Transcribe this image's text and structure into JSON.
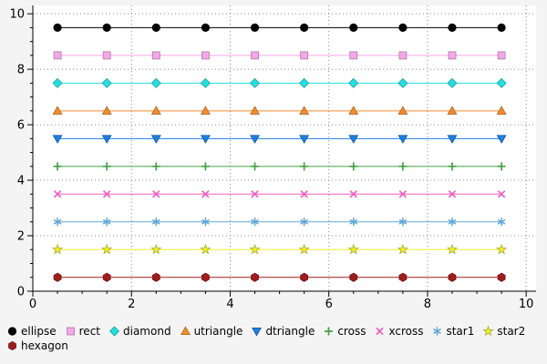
{
  "figure": {
    "background": "#f4f4f4",
    "plot_background": "#ffffff",
    "grid_color": "#8a8a8a",
    "axis_color": "#000000"
  },
  "chart_data": {
    "type": "line",
    "title": "",
    "xlabel": "",
    "ylabel": "",
    "x": [
      0.5,
      1.5,
      2.5,
      3.5,
      4.5,
      5.5,
      6.5,
      7.5,
      8.5,
      9.5
    ],
    "xlim": [
      0,
      10
    ],
    "ylim": [
      0,
      10
    ],
    "xticks": [
      "0",
      "2",
      "4",
      "6",
      "8",
      "10"
    ],
    "yticks": [
      "0",
      "2",
      "4",
      "6",
      "8",
      "10"
    ],
    "xtick_values": [
      0,
      2,
      4,
      6,
      8,
      10
    ],
    "ytick_values": [
      0,
      2,
      4,
      6,
      8,
      10
    ],
    "grid": true,
    "grid_style": "dotted",
    "legend_position": "bottom",
    "series": [
      {
        "name": "ellipse",
        "marker": "circle",
        "color": "#000000",
        "y": 9.5
      },
      {
        "name": "rect",
        "marker": "square",
        "color": "#f3a8e8",
        "y": 8.5
      },
      {
        "name": "diamond",
        "marker": "diamond",
        "color": "#25dede",
        "y": 7.5
      },
      {
        "name": "utriangle",
        "marker": "triangle-up",
        "color": "#f08c2d",
        "y": 6.5
      },
      {
        "name": "dtriangle",
        "marker": "triangle-down",
        "color": "#1f7fe0",
        "y": 5.5
      },
      {
        "name": "cross",
        "marker": "plus",
        "color": "#44a044",
        "y": 4.5
      },
      {
        "name": "xcross",
        "marker": "x",
        "color": "#f060c0",
        "y": 3.5
      },
      {
        "name": "star1",
        "marker": "asterisk",
        "color": "#5fa8d3",
        "y": 2.5
      },
      {
        "name": "star2",
        "marker": "star",
        "color": "#f2ef30",
        "y": 1.5
      },
      {
        "name": "hexagon",
        "marker": "hexagon",
        "color": "#9e1d1d",
        "y": 0.5
      }
    ]
  }
}
